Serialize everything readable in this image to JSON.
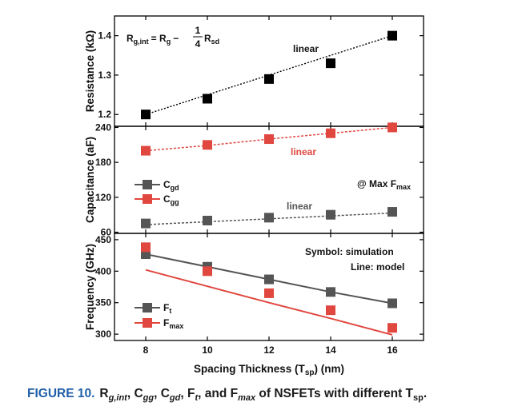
{
  "chart_data": [
    {
      "type": "scatter",
      "ylabel": "Resistance (kΩ)",
      "x": [
        8,
        10,
        12,
        14,
        16
      ],
      "yticks": [
        "1.2",
        "1.3",
        "1.4"
      ],
      "ylim": [
        1.17,
        1.45
      ],
      "equation": {
        "lhs": "R",
        "lhs_sub": "g,int",
        "mid": "= R",
        "mid_sub": "g",
        "minus": "−",
        "num": "1",
        "den": "4",
        "rhs": "R",
        "rhs_sub": "sd"
      },
      "series": [
        {
          "values": [
            1.2,
            1.24,
            1.29,
            1.33,
            1.4
          ],
          "color": "#000000",
          "marker": "square"
        }
      ],
      "fit": {
        "label": "linear",
        "style": "dotted",
        "values": [
          1.2,
          1.25,
          1.3,
          1.35,
          1.4
        ],
        "color": "#000000"
      }
    },
    {
      "type": "scatter",
      "ylabel": "Capacitance (aF)",
      "x": [
        8,
        10,
        12,
        14,
        16
      ],
      "yticks": [
        "60",
        "120",
        "180",
        "240"
      ],
      "ylim": [
        58,
        242
      ],
      "annotation": {
        "text": "@ Max F",
        "sub": "max"
      },
      "series": [
        {
          "name": "C",
          "name_sub": "gd",
          "values": [
            75,
            80,
            85,
            90,
            95
          ],
          "color": "#555555",
          "marker": "square",
          "fit_label": "linear",
          "fit": [
            73,
            78,
            83,
            88,
            93
          ]
        },
        {
          "name": "C",
          "name_sub": "gg",
          "values": [
            200,
            210,
            220,
            230,
            240
          ],
          "color": "#e0473f",
          "marker": "square",
          "fit_label": "linear",
          "fit": [
            200,
            209,
            220,
            230,
            240
          ]
        }
      ]
    },
    {
      "type": "line",
      "ylabel": "Frequency (GHz)",
      "xlabel": "Spacing Thickness (T",
      "xlabel_sub": "sp",
      "xlabel_end": ") (nm)",
      "x": [
        8,
        10,
        12,
        14,
        16
      ],
      "xticks": [
        "8",
        "10",
        "12",
        "14",
        "16"
      ],
      "yticks": [
        "300",
        "350",
        "400",
        "450"
      ],
      "ylim": [
        290,
        460
      ],
      "annotation1": "Symbol: simulation",
      "annotation2": "Line: model",
      "series": [
        {
          "name": "F",
          "name_sub": "t",
          "values": [
            427,
            407,
            387,
            367,
            349
          ],
          "line": [
            427,
            407,
            387,
            367,
            349
          ],
          "color": "#555555"
        },
        {
          "name": "F",
          "name_sub": "max",
          "values": [
            438,
            400,
            365,
            338,
            310
          ],
          "line": [
            402,
            376,
            350,
            325,
            299
          ],
          "color": "#e0473f"
        }
      ]
    }
  ],
  "caption": {
    "label": "FIGURE 10.",
    "text": "R",
    "r_sub": "g,int",
    "c1": ", C",
    "c1_sub": "gg",
    "c2": ", C",
    "c2_sub": "gd",
    "f1": ", F",
    "f1_sub": "t",
    "f2": ", and F",
    "f2_sub": "max",
    "end": " of NSFETs with different T",
    "end_sub": "sp",
    "period": "."
  }
}
